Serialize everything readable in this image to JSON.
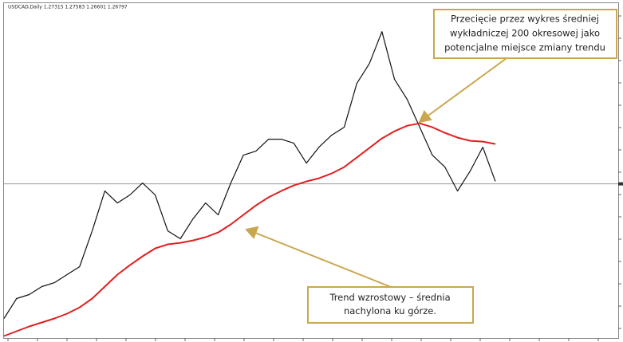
{
  "chart_data": {
    "type": "line",
    "title": "USDCAD,Daily 1.27315 1.27583 1.26601 1.26797",
    "ylim": [
      1.083,
      1.483
    ],
    "last_price": 1.26797,
    "series": [
      {
        "color": "#111111",
        "values": [
          1.1105,
          1.1338,
          1.1385,
          1.1478,
          1.1524,
          1.1618,
          1.1711,
          1.213,
          1.2596,
          1.2456,
          1.255,
          1.2689,
          1.255,
          1.213,
          1.2037,
          1.227,
          1.2456,
          1.2317,
          1.2689,
          1.3016,
          1.3062,
          1.3202,
          1.3202,
          1.3155,
          1.2922,
          1.3109,
          1.3249,
          1.3342,
          1.3854,
          1.4087,
          1.446,
          1.3901,
          1.3668,
          1.3342,
          1.3016,
          1.2876,
          1.2596,
          1.2829,
          1.3109,
          1.2708
        ]
      },
      {
        "color": "#e02020",
        "values": [
          1.09,
          1.0956,
          1.1012,
          1.1058,
          1.1105,
          1.1161,
          1.1235,
          1.1338,
          1.1478,
          1.1618,
          1.1729,
          1.1832,
          1.1925,
          1.1972,
          1.199,
          1.2018,
          1.2056,
          1.2111,
          1.2205,
          1.2317,
          1.2428,
          1.2522,
          1.2596,
          1.2661,
          1.2708,
          1.2745,
          1.2801,
          1.2876,
          1.2988,
          1.3099,
          1.3211,
          1.3295,
          1.336,
          1.3388,
          1.3342,
          1.3276,
          1.3221,
          1.3183,
          1.3174,
          1.3146
        ]
      }
    ],
    "annotations": [
      {
        "lines": [
          "Przecięcie przez wykres średniej",
          "wykładniczej 200 okresowej jako",
          "potencjalne miejsce zmiany trendu"
        ]
      },
      {
        "lines": [
          "Trend wzrostowy – średnia",
          "nachylona ku górze."
        ]
      }
    ]
  }
}
